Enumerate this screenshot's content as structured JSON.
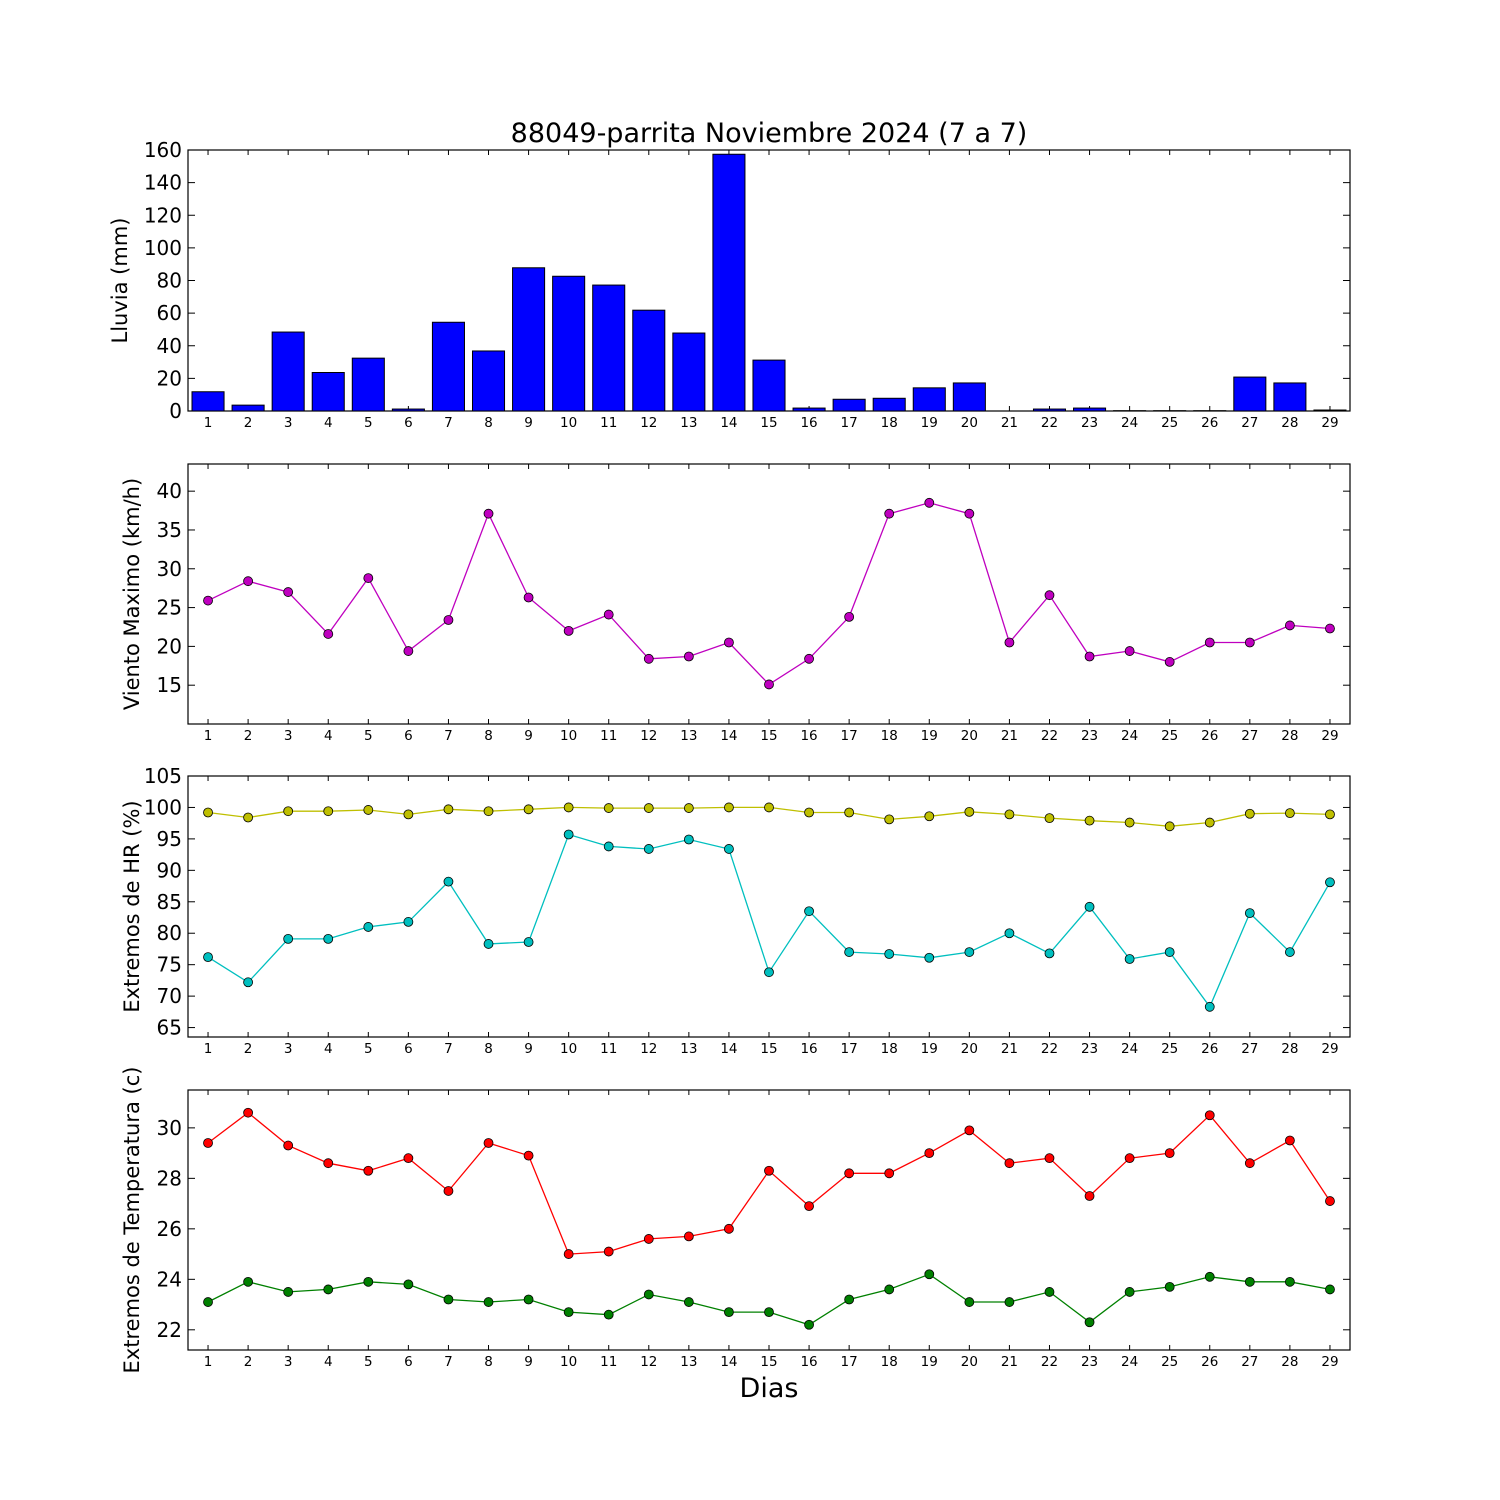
{
  "chart_data": [
    {
      "type": "bar",
      "title": "88049-parrita Noviembre 2024  (7 a 7)",
      "ylabel": "Lluvia (mm)",
      "xlabel": "",
      "ylim": [
        0,
        160
      ],
      "yticks": [
        0,
        20,
        40,
        60,
        80,
        100,
        120,
        140,
        160
      ],
      "categories": [
        1,
        2,
        3,
        4,
        5,
        6,
        7,
        8,
        9,
        10,
        11,
        12,
        13,
        14,
        15,
        16,
        17,
        18,
        19,
        20,
        21,
        22,
        23,
        24,
        25,
        26,
        27,
        28,
        29
      ],
      "series": [
        {
          "color": "#0000ff",
          "values": [
            11.8,
            3.6,
            48.4,
            23.6,
            32.4,
            1.2,
            54.4,
            36.8,
            87.8,
            82.6,
            77.2,
            61.8,
            47.8,
            157.4,
            31.2,
            1.8,
            7.2,
            7.8,
            14.2,
            17.2,
            0,
            1.2,
            1.8,
            0.2,
            0.2,
            0.2,
            20.8,
            17.2,
            0.6
          ]
        }
      ]
    },
    {
      "type": "line",
      "ylabel": "Viento Maximo (km/h)",
      "xlabel": "",
      "ylim": [
        10,
        43.5
      ],
      "yticks": [
        15,
        20,
        25,
        30,
        35,
        40
      ],
      "x": [
        1,
        2,
        3,
        4,
        5,
        6,
        7,
        8,
        9,
        10,
        11,
        12,
        13,
        14,
        15,
        16,
        17,
        18,
        19,
        20,
        21,
        22,
        23,
        24,
        25,
        26,
        27,
        28,
        29
      ],
      "series": [
        {
          "color": "#bf00bf",
          "values": [
            25.9,
            28.4,
            27.0,
            21.6,
            28.8,
            19.4,
            23.4,
            37.1,
            26.3,
            22.0,
            24.1,
            18.4,
            18.7,
            20.5,
            15.1,
            18.4,
            23.8,
            37.1,
            38.5,
            37.1,
            20.5,
            26.6,
            18.7,
            19.4,
            18.0,
            20.5,
            20.5,
            22.7,
            22.3
          ]
        }
      ]
    },
    {
      "type": "line",
      "ylabel": "Extremos de HR (%)",
      "xlabel": "",
      "ylim": [
        63.5,
        105
      ],
      "yticks": [
        65,
        70,
        75,
        80,
        85,
        90,
        95,
        100,
        105
      ],
      "x": [
        1,
        2,
        3,
        4,
        5,
        6,
        7,
        8,
        9,
        10,
        11,
        12,
        13,
        14,
        15,
        16,
        17,
        18,
        19,
        20,
        21,
        22,
        23,
        24,
        25,
        26,
        27,
        28,
        29
      ],
      "series": [
        {
          "color": "#bfbf00",
          "values": [
            99.2,
            98.4,
            99.4,
            99.4,
            99.6,
            98.9,
            99.7,
            99.4,
            99.7,
            100.0,
            99.9,
            99.9,
            99.9,
            100.0,
            100.0,
            99.2,
            99.2,
            98.1,
            98.6,
            99.3,
            98.9,
            98.3,
            97.9,
            97.6,
            97.0,
            97.6,
            99.0,
            99.1,
            98.9
          ]
        },
        {
          "color": "#00bfbf",
          "values": [
            76.2,
            72.2,
            79.1,
            79.1,
            81.0,
            81.8,
            88.2,
            78.3,
            78.6,
            95.7,
            93.8,
            93.4,
            94.9,
            93.4,
            73.8,
            83.5,
            77.0,
            76.7,
            76.1,
            77.0,
            80.0,
            76.8,
            84.2,
            75.9,
            77.0,
            68.3,
            83.2,
            77.0,
            88.1
          ]
        }
      ]
    },
    {
      "type": "line",
      "ylabel": "Extremos de Temperatura (c)",
      "xlabel": "Dias",
      "ylim": [
        21.2,
        31.5
      ],
      "yticks": [
        22,
        24,
        26,
        28,
        30
      ],
      "x": [
        1,
        2,
        3,
        4,
        5,
        6,
        7,
        8,
        9,
        10,
        11,
        12,
        13,
        14,
        15,
        16,
        17,
        18,
        19,
        20,
        21,
        22,
        23,
        24,
        25,
        26,
        27,
        28,
        29
      ],
      "series": [
        {
          "color": "#ff0000",
          "values": [
            29.4,
            30.6,
            29.3,
            28.6,
            28.3,
            28.8,
            27.5,
            29.4,
            28.9,
            25.0,
            25.1,
            25.6,
            25.7,
            26.0,
            28.3,
            26.9,
            28.2,
            28.2,
            29.0,
            29.9,
            28.6,
            28.8,
            27.3,
            28.8,
            29.0,
            30.5,
            28.6,
            29.5,
            27.1
          ]
        },
        {
          "color": "#008000",
          "values": [
            23.1,
            23.9,
            23.5,
            23.6,
            23.9,
            23.8,
            23.2,
            23.1,
            23.2,
            22.7,
            22.6,
            23.4,
            23.1,
            22.7,
            22.7,
            22.2,
            23.2,
            23.6,
            24.2,
            23.1,
            23.1,
            23.5,
            22.3,
            23.5,
            23.7,
            24.1,
            23.9,
            23.9,
            23.6
          ]
        }
      ]
    }
  ]
}
